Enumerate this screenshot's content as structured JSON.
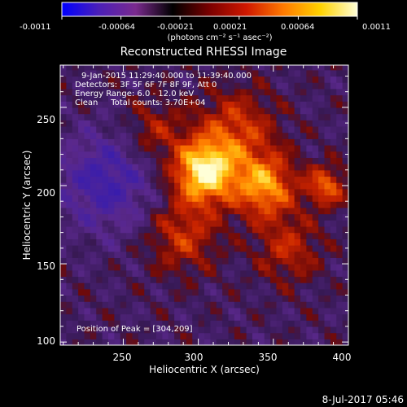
{
  "colorbar": {
    "ticks": [
      "-0.0011",
      "-0.00064",
      "-0.00021",
      "0.00021",
      "0.00064",
      "0.0011"
    ],
    "unit_label": "(photons cm⁻² s⁻¹ asec⁻²)",
    "colors": [
      "#0000ff",
      "#4b1fb8",
      "#7a2a8e",
      "#000000",
      "#7a0000",
      "#d01800",
      "#ff7a00",
      "#ffd200",
      "#ffffd8"
    ]
  },
  "chart_data": {
    "type": "heatmap",
    "title": "Reconstructed RHESSI Image",
    "xlabel": "Heliocentric X (arcsec)",
    "ylabel": "Heliocentric Y (arcsec)",
    "xlim": [
      208,
      400
    ],
    "ylim": [
      98,
      277
    ],
    "xticks": [
      250,
      300,
      350,
      400
    ],
    "yticks": [
      100,
      150,
      200,
      250
    ],
    "info_lines": [
      "9-Jan-2015 11:29:40.000 to 11:39:40.000",
      "Detectors: 3F 5F 6F 7F 8F 9F, Att 0",
      "Energy Range: 6.0 - 12.0 keV",
      "Clean     Total counts: 3.70E+04"
    ],
    "peak_label": "Position of Peak = [304,209]",
    "peak": [
      304,
      209
    ],
    "sources": [
      {
        "x": 304,
        "y": 209,
        "sigma": 14,
        "amp": 1.0
      },
      {
        "x": 344,
        "y": 200,
        "sigma": 14,
        "amp": 0.72
      },
      {
        "x": 385,
        "y": 200,
        "sigma": 9,
        "amp": 0.55
      },
      {
        "x": 325,
        "y": 235,
        "sigma": 18,
        "amp": 0.45
      },
      {
        "x": 290,
        "y": 168,
        "sigma": 16,
        "amp": 0.4
      },
      {
        "x": 360,
        "y": 160,
        "sigma": 15,
        "amp": 0.35
      },
      {
        "x": 270,
        "y": 235,
        "sigma": 14,
        "amp": 0.3
      }
    ],
    "negative_region": {
      "x": 238,
      "y": 203,
      "sigma": 22,
      "amp": -0.45
    }
  },
  "footer_date": "8-Jul-2017 05:46"
}
